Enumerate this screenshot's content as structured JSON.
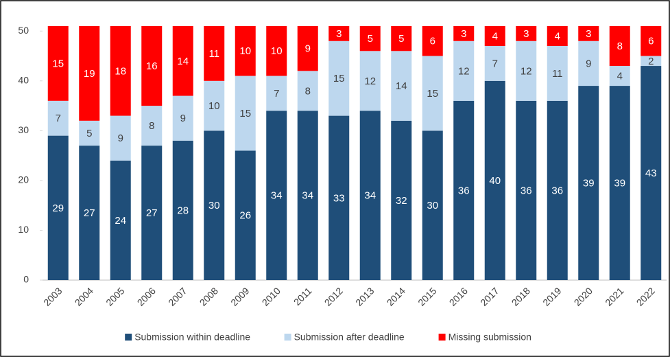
{
  "chart_data": {
    "type": "stacked-bar",
    "categories": [
      "2003",
      "2004",
      "2005",
      "2006",
      "2007",
      "2008",
      "2009",
      "2010",
      "2011",
      "2012",
      "2013",
      "2014",
      "2015",
      "2016",
      "2017",
      "2018",
      "2019",
      "2020",
      "2021",
      "2022"
    ],
    "series": [
      {
        "name": "Submission within deadline",
        "color": "#1f4e79",
        "label_color": "#ffffff",
        "values": [
          29,
          27,
          24,
          27,
          28,
          30,
          26,
          34,
          34,
          33,
          34,
          32,
          30,
          36,
          40,
          36,
          36,
          39,
          39,
          43
        ]
      },
      {
        "name": "Submission after deadline",
        "color": "#bdd7ee",
        "label_color": "#404040",
        "values": [
          7,
          5,
          9,
          8,
          9,
          10,
          15,
          7,
          8,
          15,
          12,
          14,
          15,
          12,
          7,
          12,
          11,
          9,
          4,
          2
        ]
      },
      {
        "name": "Missing submission",
        "color": "#ff0000",
        "label_color": "#ffffff",
        "values": [
          15,
          19,
          18,
          16,
          14,
          11,
          10,
          10,
          9,
          3,
          5,
          5,
          6,
          3,
          4,
          3,
          4,
          3,
          8,
          6
        ]
      }
    ],
    "ylim": [
      0,
      51
    ],
    "yticks": [
      0,
      10,
      20,
      30,
      40,
      50
    ],
    "legend": "bottom"
  }
}
